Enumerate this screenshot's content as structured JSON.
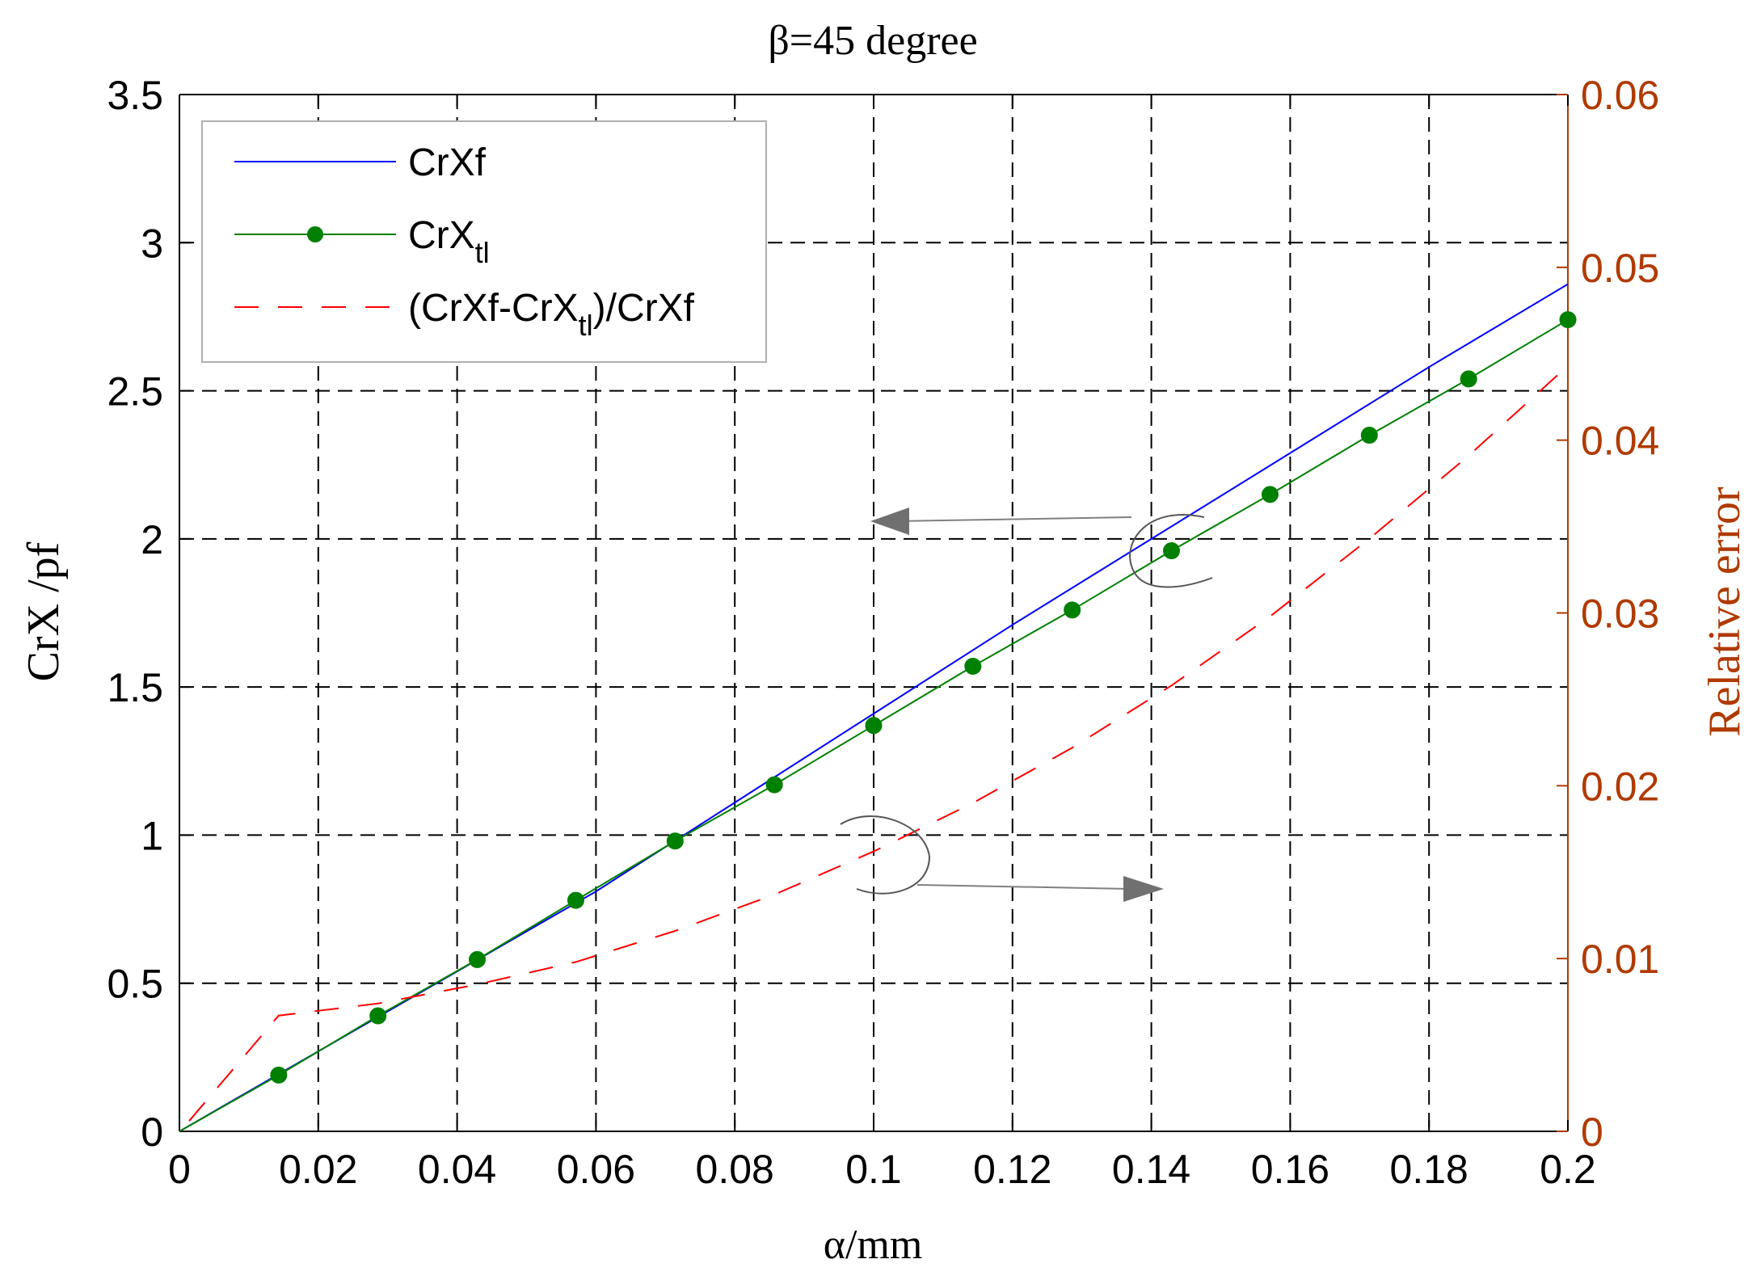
{
  "chart_data": {
    "type": "line",
    "title": "β=45  degree",
    "xlabel": "α/mm",
    "ylabel_left": "CrX /pf",
    "ylabel_right": "Relative error",
    "xlim": [
      0,
      0.2
    ],
    "ylim_left": [
      0,
      3.5
    ],
    "ylim_right": [
      0,
      0.06
    ],
    "x_ticks": [
      0,
      0.02,
      0.04,
      0.06,
      0.08,
      0.1,
      0.12,
      0.14,
      0.16,
      0.18,
      0.2
    ],
    "x_tick_labels": [
      "0",
      "0.02",
      "0.04",
      "0.06",
      "0.08",
      "0.1",
      "0.12",
      "0.14",
      "0.16",
      "0.18",
      "0.2"
    ],
    "y_left_ticks": [
      0,
      0.5,
      1,
      1.5,
      2,
      2.5,
      3,
      3.5
    ],
    "y_left_tick_labels": [
      "0",
      "0.5",
      "1",
      "1.5",
      "2",
      "2.5",
      "3",
      "3.5"
    ],
    "y_right_ticks": [
      0,
      0.01,
      0.02,
      0.03,
      0.04,
      0.05,
      0.06
    ],
    "y_right_tick_labels": [
      "0",
      "0.01",
      "0.02",
      "0.03",
      "0.04",
      "0.05",
      "0.06"
    ],
    "grid": true,
    "legend_position": "top-left",
    "series": [
      {
        "name": "CrXf",
        "legend_main": "CrXf",
        "legend_sub": "",
        "legend_suffix": "",
        "axis": "left",
        "style": "solid",
        "color": "#0000ff",
        "marker": "none",
        "x": [
          0,
          0.02,
          0.04,
          0.06,
          0.08,
          0.1,
          0.12,
          0.14,
          0.16,
          0.18,
          0.2
        ],
        "values": [
          0,
          0.27,
          0.54,
          0.81,
          1.11,
          1.41,
          1.71,
          2.0,
          2.29,
          2.58,
          2.86
        ]
      },
      {
        "name": "CrX_tl",
        "legend_main": "CrX",
        "legend_sub": "tl",
        "legend_suffix": "",
        "axis": "left",
        "style": "solid",
        "color": "#008000",
        "marker": "circle",
        "x": [
          0,
          0.0143,
          0.0286,
          0.0429,
          0.0571,
          0.0714,
          0.0857,
          0.1,
          0.1143,
          0.1286,
          0.1429,
          0.1571,
          0.1714,
          0.1857,
          0.2
        ],
        "values": [
          0,
          0.19,
          0.39,
          0.58,
          0.78,
          0.98,
          1.17,
          1.37,
          1.57,
          1.76,
          1.96,
          2.15,
          2.35,
          2.54,
          2.74
        ],
        "marker_x": [
          0.0143,
          0.0286,
          0.0429,
          0.0571,
          0.0714,
          0.0857,
          0.1,
          0.1143,
          0.1286,
          0.1429,
          0.1571,
          0.1714,
          0.1857,
          0.2
        ],
        "marker_values": [
          0.19,
          0.39,
          0.58,
          0.78,
          0.98,
          1.17,
          1.37,
          1.57,
          1.76,
          1.96,
          2.15,
          2.35,
          2.54,
          2.74
        ]
      },
      {
        "name": "(CrXf-CrX_tl)/CrXf",
        "legend_main": "(CrXf-CrX",
        "legend_sub": "tl",
        "legend_suffix": ")/CrXf",
        "axis": "right",
        "style": "dashed",
        "color": "#ff0000",
        "marker": "none",
        "x": [
          0.0014,
          0.0143,
          0.0286,
          0.0429,
          0.0571,
          0.0714,
          0.0857,
          0.1,
          0.1143,
          0.1286,
          0.1429,
          0.1571,
          0.1714,
          0.1857,
          0.2
        ],
        "values": [
          0.0006,
          0.0067,
          0.0074,
          0.0085,
          0.0098,
          0.0116,
          0.0137,
          0.0162,
          0.019,
          0.0222,
          0.0258,
          0.0298,
          0.0343,
          0.0391,
          0.0443
        ]
      }
    ],
    "annotations": [
      {
        "type": "arrow",
        "direction": "left",
        "points_to_axis": "left"
      },
      {
        "type": "arrow",
        "direction": "right",
        "points_to_axis": "right"
      }
    ]
  }
}
